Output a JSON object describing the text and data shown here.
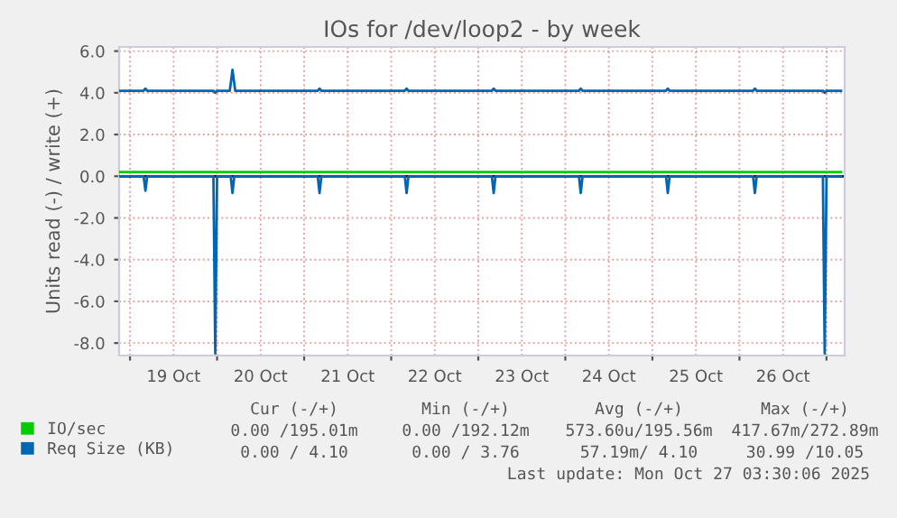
{
  "chart_data": {
    "type": "line",
    "title": "IOs for /dev/loop2 - by week",
    "ylabel": "Units read (-) / write (+)",
    "xlim": [
      "2025-10-18T21:00",
      "2025-10-27T05:00"
    ],
    "xticks": [
      {
        "value": "2025-10-19T00:00",
        "label": null
      },
      {
        "value": "2025-10-19T12:00",
        "label": "19 Oct"
      },
      {
        "value": "2025-10-20T00:00",
        "label": null
      },
      {
        "value": "2025-10-20T12:00",
        "label": "20 Oct"
      },
      {
        "value": "2025-10-21T00:00",
        "label": null
      },
      {
        "value": "2025-10-21T12:00",
        "label": "21 Oct"
      },
      {
        "value": "2025-10-22T00:00",
        "label": null
      },
      {
        "value": "2025-10-22T12:00",
        "label": "22 Oct"
      },
      {
        "value": "2025-10-23T00:00",
        "label": null
      },
      {
        "value": "2025-10-23T12:00",
        "label": "23 Oct"
      },
      {
        "value": "2025-10-24T00:00",
        "label": null
      },
      {
        "value": "2025-10-24T12:00",
        "label": "24 Oct"
      },
      {
        "value": "2025-10-25T00:00",
        "label": null
      },
      {
        "value": "2025-10-25T12:00",
        "label": "25 Oct"
      },
      {
        "value": "2025-10-26T00:00",
        "label": null
      },
      {
        "value": "2025-10-26T12:00",
        "label": "26 Oct"
      },
      {
        "value": "2025-10-27T00:00",
        "label": null
      }
    ],
    "ylim": [
      -8.6,
      6.2
    ],
    "yticks": [
      {
        "value": -8,
        "label": "-8.0"
      },
      {
        "value": -6,
        "label": "-6.0"
      },
      {
        "value": -4,
        "label": "-4.0"
      },
      {
        "value": -2,
        "label": "-2.0"
      },
      {
        "value": 0,
        "label": "0.0"
      },
      {
        "value": 2,
        "label": "2.0"
      },
      {
        "value": 4,
        "label": "4.0"
      },
      {
        "value": 6,
        "label": "6.0"
      }
    ],
    "grid": true,
    "legend": "bottom",
    "marker": "none",
    "line_style": "solid",
    "ref_lines": [
      {
        "axis": "y",
        "value": 0,
        "color": "#000000"
      }
    ],
    "series": [
      {
        "name": "IO/sec",
        "color": "#00cc00",
        "x": [
          "2025-10-18T21:00",
          "2025-10-27T04:00"
        ],
        "values": [
          0.2,
          0.2
        ]
      },
      {
        "name": "Req Size (KB)",
        "color": "#0066b3",
        "x": [
          "2025-10-18T21:00",
          "2025-10-19T03:45",
          "2025-10-19T04:15",
          "2025-10-19T04:45",
          "2025-10-19T23:00",
          "2025-10-19T23:30",
          "2025-10-20T00:00",
          "2025-10-20T03:30",
          "2025-10-20T04:15",
          "2025-10-20T05:00",
          "2025-10-21T03:45",
          "2025-10-21T04:15",
          "2025-10-21T04:45",
          "2025-10-22T03:45",
          "2025-10-22T04:15",
          "2025-10-22T04:45",
          "2025-10-23T03:45",
          "2025-10-23T04:15",
          "2025-10-23T04:45",
          "2025-10-24T03:45",
          "2025-10-24T04:15",
          "2025-10-24T04:45",
          "2025-10-25T03:45",
          "2025-10-25T04:15",
          "2025-10-25T04:45",
          "2025-10-26T03:45",
          "2025-10-26T04:15",
          "2025-10-26T04:45",
          "2025-10-26T23:00",
          "2025-10-26T23:30",
          "2025-10-27T00:00",
          "2025-10-27T04:00"
        ],
        "values": [
          4.1,
          4.1,
          4.2,
          4.1,
          4.1,
          4.0,
          4.1,
          4.1,
          5.1,
          4.1,
          4.1,
          4.2,
          4.1,
          4.1,
          4.2,
          4.1,
          4.1,
          4.2,
          4.1,
          4.1,
          4.2,
          4.1,
          4.1,
          4.2,
          4.1,
          4.1,
          4.2,
          4.1,
          4.1,
          4.0,
          4.1,
          4.1
        ]
      },
      {
        "color": "#0066b3",
        "x": [
          "2025-10-18T21:00",
          "2025-10-19T03:45",
          "2025-10-19T04:15",
          "2025-10-19T04:45",
          "2025-10-19T23:00",
          "2025-10-19T23:30",
          "2025-10-20T00:00",
          "2025-10-20T03:45",
          "2025-10-20T04:15",
          "2025-10-20T04:45",
          "2025-10-21T03:45",
          "2025-10-21T04:15",
          "2025-10-21T04:45",
          "2025-10-22T03:45",
          "2025-10-22T04:15",
          "2025-10-22T04:45",
          "2025-10-23T03:45",
          "2025-10-23T04:15",
          "2025-10-23T04:45",
          "2025-10-24T03:45",
          "2025-10-24T04:15",
          "2025-10-24T04:45",
          "2025-10-25T03:45",
          "2025-10-25T04:15",
          "2025-10-25T04:45",
          "2025-10-26T03:45",
          "2025-10-26T04:15",
          "2025-10-26T04:45",
          "2025-10-26T23:00",
          "2025-10-26T23:30",
          "2025-10-27T00:00",
          "2025-10-27T04:00"
        ],
        "values": [
          0,
          0,
          -0.7,
          0,
          0,
          -8.5,
          0,
          0,
          -0.8,
          0,
          0,
          -0.8,
          0,
          0,
          -0.8,
          0,
          0,
          -0.8,
          0,
          0,
          -0.8,
          0,
          0,
          -0.8,
          0,
          0,
          -0.8,
          0,
          0,
          -8.5,
          0,
          0
        ]
      }
    ],
    "annotations": [
      "Cur (-/+)",
      "Min (-/+)",
      "Avg (-/+)",
      "Max (-/+)",
      "0.00 /195.01m",
      "0.00 /192.12m",
      "573.60u/195.56m",
      "417.67m/272.89m",
      "0.00 / 4.10",
      "0.00 / 3.76",
      "57.19m/ 4.10",
      "30.99 /10.05",
      "Last update: Mon Oct 27 03:30:06 2025"
    ]
  }
}
